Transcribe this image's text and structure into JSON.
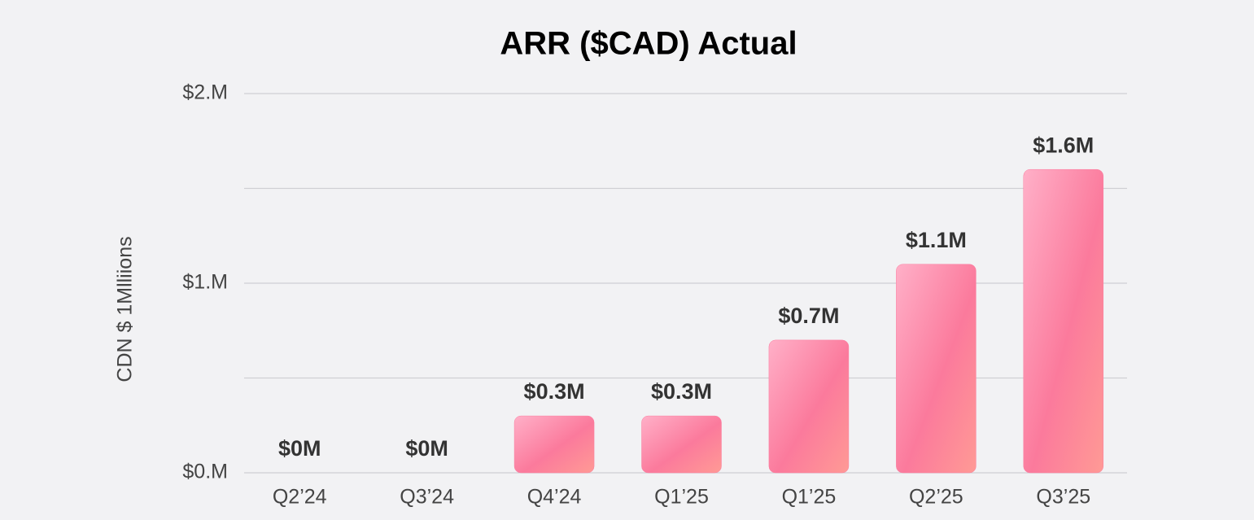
{
  "chart_data": {
    "type": "bar",
    "title": "ARR ($CAD) Actual",
    "y_axis_label": "CDN $ 1Mlliions",
    "categories": [
      "Q2’24",
      "Q3’24",
      "Q4’24",
      "Q1’25",
      "Q1’25",
      "Q2’25",
      "Q3’25"
    ],
    "values": [
      0,
      0,
      0.3,
      0.3,
      0.7,
      1.1,
      1.6
    ],
    "value_labels": [
      "$0M",
      "$0M",
      "$0.3M",
      "$0.3M",
      "$0.7M",
      "$1.1M",
      "$1.6M"
    ],
    "color": "#fb7ea0",
    "ylim": [
      0,
      2
    ],
    "yticks": [
      {
        "value": 0,
        "label": "$0.M"
      },
      {
        "value": 0.5,
        "label": null
      },
      {
        "value": 1,
        "label": "$1.M"
      },
      {
        "value": 1.5,
        "label": null
      },
      {
        "value": 2,
        "label": "$2.M"
      }
    ],
    "grid": true
  }
}
